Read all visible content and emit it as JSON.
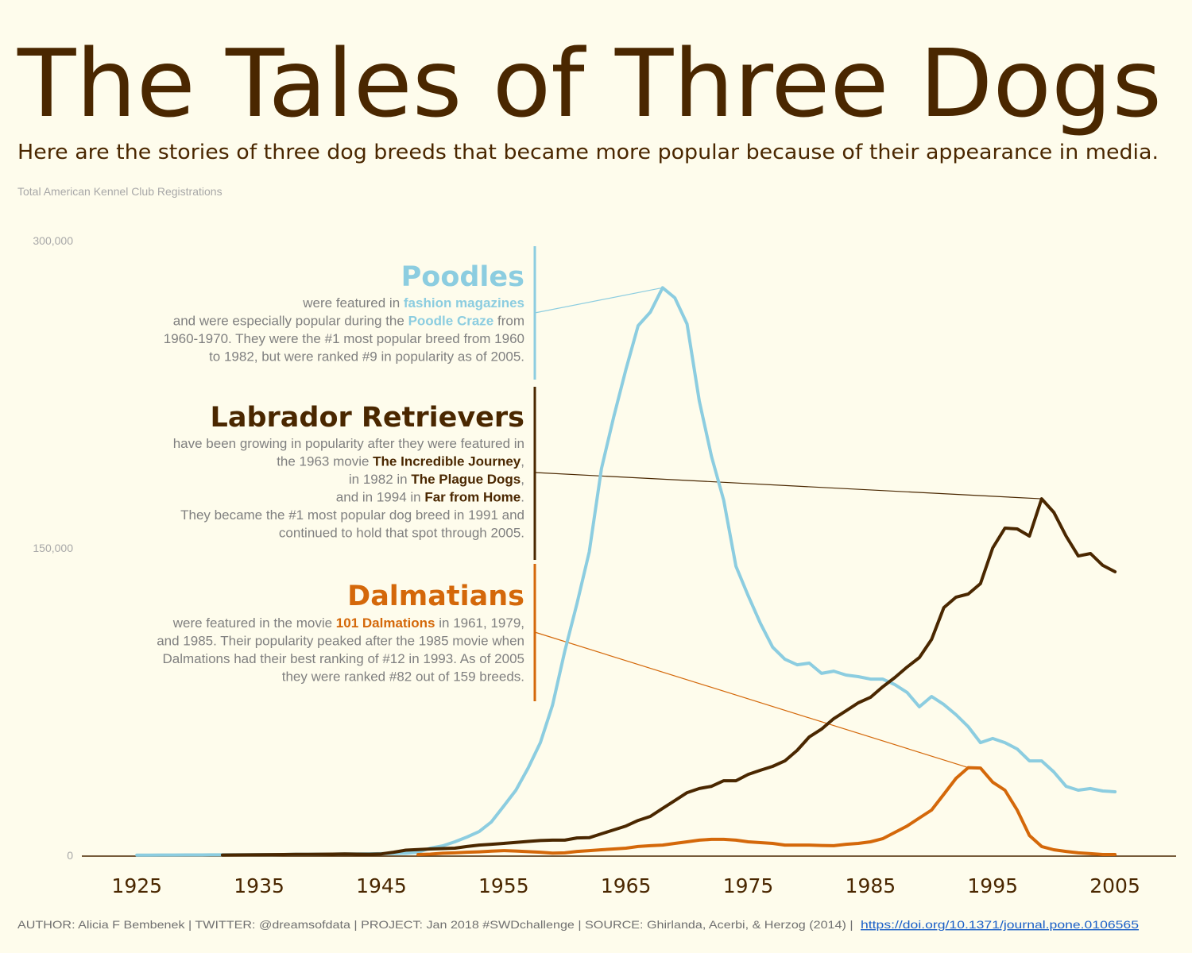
{
  "chart_data": {
    "type": "line",
    "title": "The Tales of Three Dogs",
    "subtitle": "Here are the stories of three dog breeds that became more popular because of their appearance in media.",
    "y_label": "Total American Kennel Club Registrations",
    "x": [
      1925,
      1926,
      1927,
      1928,
      1929,
      1930,
      1931,
      1932,
      1933,
      1934,
      1935,
      1936,
      1937,
      1938,
      1939,
      1940,
      1941,
      1942,
      1943,
      1944,
      1945,
      1946,
      1947,
      1948,
      1949,
      1950,
      1951,
      1952,
      1953,
      1954,
      1955,
      1956,
      1957,
      1958,
      1959,
      1960,
      1961,
      1962,
      1963,
      1964,
      1965,
      1966,
      1967,
      1968,
      1969,
      1970,
      1971,
      1972,
      1973,
      1974,
      1975,
      1976,
      1977,
      1978,
      1979,
      1980,
      1981,
      1982,
      1983,
      1984,
      1985,
      1986,
      1987,
      1988,
      1989,
      1990,
      1991,
      1992,
      1993,
      1994,
      1995,
      1996,
      1997,
      1998,
      1999,
      2000,
      2001,
      2002,
      2003,
      2004,
      2005
    ],
    "xlim": [
      1920.5,
      2010
    ],
    "xticks": [
      1925,
      1935,
      1945,
      1955,
      1965,
      1975,
      1985,
      1995,
      2005
    ],
    "ylim": [
      0,
      300000
    ],
    "yticks": [
      0,
      {
        "value": 150000,
        "label": "150,000"
      },
      {
        "value": 300000,
        "label": "300,000"
      }
    ],
    "grid": false,
    "series": [
      {
        "name": "Poodles",
        "color": "#8ccde0",
        "values": [
          100,
          100,
          150,
          150,
          200,
          200,
          250,
          250,
          300,
          300,
          350,
          350,
          400,
          450,
          500,
          550,
          600,
          650,
          700,
          750,
          800,
          900,
          1000,
          1500,
          3500,
          4600,
          6600,
          8900,
          11600,
          16300,
          24000,
          31800,
          42600,
          55000,
          73300,
          99600,
          122900,
          148100,
          188800,
          214000,
          237200,
          258500,
          265100,
          277000,
          272100,
          259300,
          221700,
          194600,
          173300,
          141100,
          126700,
          113200,
          101600,
          95700,
          93000,
          93800,
          88800,
          89900,
          88000,
          87200,
          86000,
          86000,
          83300,
          79500,
          72500,
          77500,
          73600,
          68600,
          62800,
          55000,
          57000,
          55000,
          51900,
          46100,
          46100,
          40700,
          33700,
          31800,
          32600,
          31400,
          31000
        ],
        "story": [
          [
            "were featured in ",
            {
              "text": "fashion magazines",
              "highlight": true
            }
          ],
          [
            "and were especially popular during the ",
            {
              "text": "Poodle Craze",
              "highlight": true
            },
            " from"
          ],
          [
            "1960-1970. They were the #1 most popular breed from 1960"
          ],
          [
            "to 1982, but were ranked #9 in popularity as of 2005."
          ]
        ]
      },
      {
        "name": "Labrador Retrievers",
        "color": "#4a2700",
        "values": [
          null,
          null,
          null,
          null,
          null,
          null,
          null,
          150,
          200,
          250,
          300,
          350,
          400,
          450,
          500,
          550,
          600,
          650,
          600,
          550,
          700,
          1500,
          2500,
          2800,
          3100,
          3300,
          3500,
          4300,
          5000,
          5400,
          5800,
          6300,
          6800,
          7200,
          7400,
          7400,
          8500,
          8600,
          10500,
          12400,
          14300,
          17000,
          19000,
          22900,
          26700,
          30600,
          32600,
          33700,
          36400,
          36400,
          39500,
          41500,
          43400,
          46100,
          51200,
          57800,
          61600,
          66700,
          70500,
          74400,
          77100,
          82200,
          86800,
          91900,
          96500,
          105400,
          120900,
          126000,
          127500,
          132600,
          150000,
          159700,
          159300,
          155800,
          174000,
          167400,
          155800,
          146100,
          147300,
          141500,
          138400
        ],
        "story": [
          [
            "have been growing in popularity after they were featured in"
          ],
          [
            "the 1963 movie ",
            {
              "text": "The Incredible Journey",
              "highlight": true
            },
            ","
          ],
          [
            "in 1982 in ",
            {
              "text": "The Plague Dogs",
              "highlight": true
            },
            ","
          ],
          [
            "and in 1994 in ",
            {
              "text": "Far from Home",
              "highlight": true
            },
            "."
          ],
          [
            "They became the #1 most popular dog breed in 1991 and"
          ],
          [
            "continued to hold that spot through 2005."
          ]
        ]
      },
      {
        "name": "Dalmatians",
        "color": "#d4680a",
        "values": [
          null,
          null,
          null,
          null,
          null,
          null,
          null,
          null,
          null,
          null,
          null,
          null,
          null,
          null,
          null,
          null,
          null,
          null,
          null,
          null,
          null,
          null,
          null,
          400,
          600,
          1000,
          1200,
          1500,
          1700,
          2000,
          2300,
          2100,
          1800,
          1500,
          1100,
          1200,
          1900,
          2300,
          2700,
          3100,
          3500,
          4300,
          4700,
          5000,
          5800,
          6600,
          7400,
          7800,
          7800,
          7400,
          6600,
          6200,
          5800,
          5000,
          5000,
          5000,
          4800,
          4700,
          5400,
          5800,
          6600,
          8100,
          11200,
          14300,
          18200,
          22100,
          29800,
          37600,
          42800,
          42600,
          35700,
          31800,
          22100,
          9700,
          4300,
          2700,
          1900,
          1200,
          800,
          400,
          400
        ],
        "story": [
          [
            "were featured in the movie ",
            {
              "text": "101 Dalmations",
              "highlight": true
            },
            " in 1961, 1979,"
          ],
          [
            "and 1985. Their popularity peaked after the 1985 movie when"
          ],
          [
            "Dalmations had their best ranking of #12 in 1993. As of 2005"
          ],
          [
            "they were ranked #82 out of 159 breeds."
          ]
        ]
      }
    ],
    "footer": "AUTHOR: Alicia F Bembenek | TWITTER: @dreamsofdata | PROJECT: Jan 2018 #SWDchallenge | SOURCE: Ghirlanda, Acerbi, & Herzog (2014) | ",
    "link": "https://doi.org/10.1371/journal.pone.0106565"
  }
}
